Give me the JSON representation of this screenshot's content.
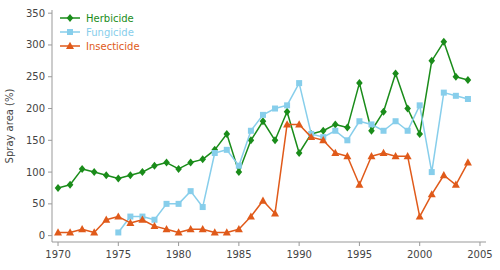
{
  "chart_data": {
    "type": "line",
    "ylabel": "Spray area (%)",
    "series": [
      {
        "name": "Herbicide",
        "color": "#1a8c1a",
        "marker": "diamond",
        "x": [
          1970,
          1971,
          1972,
          1973,
          1974,
          1975,
          1976,
          1977,
          1978,
          1979,
          1980,
          1981,
          1982,
          1983,
          1984,
          1985,
          1986,
          1987,
          1988,
          1989,
          1990,
          1991,
          1992,
          1993,
          1994,
          1995,
          1996,
          1997,
          1998,
          1999,
          2000,
          2001,
          2002,
          2003,
          2004
        ],
        "values": [
          75,
          80,
          105,
          100,
          95,
          90,
          95,
          100,
          110,
          115,
          105,
          115,
          120,
          135,
          160,
          100,
          150,
          180,
          150,
          195,
          130,
          160,
          165,
          175,
          170,
          240,
          165,
          195,
          255,
          200,
          160,
          275,
          305,
          250,
          245
        ]
      },
      {
        "name": "Fungicide",
        "color": "#87ceeb",
        "marker": "square",
        "x": [
          1975,
          1976,
          1977,
          1978,
          1979,
          1980,
          1981,
          1982,
          1983,
          1984,
          1985,
          1986,
          1987,
          1988,
          1989,
          1990,
          1991,
          1992,
          1993,
          1994,
          1995,
          1996,
          1997,
          1998,
          1999,
          2000,
          2001,
          2002,
          2003,
          2004
        ],
        "values": [
          5,
          30,
          30,
          25,
          50,
          50,
          70,
          45,
          130,
          135,
          110,
          165,
          190,
          200,
          205,
          240,
          160,
          155,
          165,
          150,
          180,
          175,
          165,
          180,
          165,
          205,
          100,
          225,
          220,
          215
        ]
      },
      {
        "name": "Insecticide",
        "color": "#e05a1a",
        "marker": "triangle",
        "x": [
          1970,
          1971,
          1972,
          1973,
          1974,
          1975,
          1976,
          1977,
          1978,
          1979,
          1980,
          1981,
          1982,
          1983,
          1984,
          1985,
          1986,
          1987,
          1988,
          1989,
          1990,
          1991,
          1992,
          1993,
          1994,
          1995,
          1996,
          1997,
          1998,
          1999,
          2000,
          2001,
          2002,
          2003,
          2004
        ],
        "values": [
          5,
          5,
          10,
          5,
          25,
          30,
          20,
          25,
          15,
          10,
          5,
          10,
          10,
          5,
          5,
          10,
          30,
          55,
          35,
          175,
          175,
          155,
          150,
          130,
          125,
          80,
          125,
          130,
          125,
          125,
          30,
          65,
          95,
          80,
          115
        ]
      }
    ],
    "xlim": [
      1969.5,
      2005.5
    ],
    "ylim": [
      -10,
      355
    ],
    "xticks": [
      1970,
      1975,
      1980,
      1985,
      1990,
      1995,
      2000,
      2005
    ],
    "yticks": [
      0,
      50,
      100,
      150,
      200,
      250,
      300,
      350
    ],
    "grid": false,
    "legend": "upper left"
  }
}
